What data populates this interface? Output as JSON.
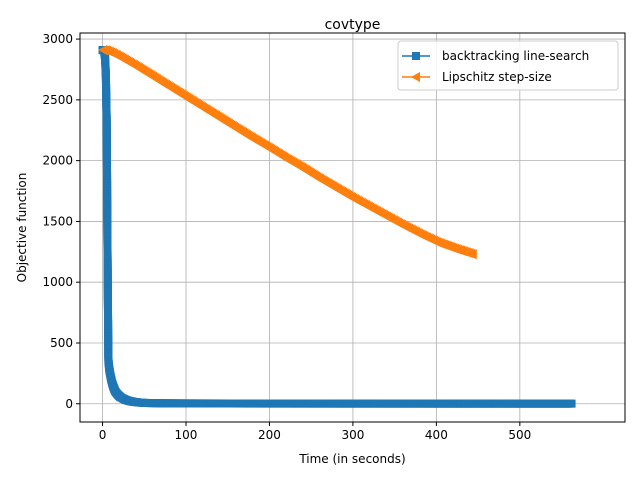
{
  "chart_data": {
    "type": "line",
    "title": "covtype",
    "xlabel": "Time (in seconds)",
    "ylabel": "Objective function",
    "xlim": [
      -27,
      626
    ],
    "ylim": [
      -150,
      3050
    ],
    "xticks": [
      0,
      100,
      200,
      300,
      400,
      500
    ],
    "yticks": [
      0,
      500,
      1000,
      1500,
      2000,
      2500,
      3000
    ],
    "xtick_labels": [
      "0",
      "100",
      "200",
      "300",
      "400",
      "500"
    ],
    "ytick_labels": [
      "0",
      "500",
      "1000",
      "1500",
      "2000",
      "2500",
      "3000"
    ],
    "grid": true,
    "legend_position": "top-right",
    "series": [
      {
        "name": "backtracking line-search",
        "color": "#1f77b4",
        "marker": "square",
        "x": [
          0,
          2,
          3,
          4,
          5,
          6,
          7,
          8,
          9,
          10,
          11,
          12,
          13,
          14,
          15,
          17,
          19,
          21,
          24,
          27,
          30,
          34,
          38,
          43,
          48,
          55,
          62,
          70,
          80,
          90,
          100,
          120,
          140,
          160,
          180,
          200,
          230,
          260,
          290,
          320,
          350,
          380,
          410,
          440,
          470,
          500,
          530,
          562
        ],
        "y": [
          2910,
          2905,
          2850,
          2700,
          2310,
          1220,
          360,
          290,
          250,
          215,
          185,
          160,
          140,
          122,
          105,
          85,
          70,
          57,
          45,
          35,
          27,
          20,
          15,
          11,
          8,
          6,
          5,
          4,
          3.5,
          3,
          2.8,
          2.5,
          2.3,
          2.1,
          2,
          1.9,
          1.8,
          1.7,
          1.6,
          1.6,
          1.5,
          1.5,
          1.4,
          1.4,
          1.4,
          1.3,
          1.3,
          1.3
        ]
      },
      {
        "name": "Lipschitz step-size",
        "color": "#ff7f0e",
        "marker": "triangle-left",
        "x": [
          0,
          5,
          10,
          20,
          40,
          60,
          80,
          100,
          120,
          140,
          160,
          180,
          200,
          220,
          240,
          260,
          280,
          300,
          320,
          340,
          360,
          380,
          400,
          420,
          443
        ],
        "y": [
          2910,
          2905,
          2890,
          2855,
          2775,
          2690,
          2605,
          2520,
          2435,
          2350,
          2265,
          2180,
          2100,
          2015,
          1935,
          1850,
          1770,
          1690,
          1615,
          1540,
          1465,
          1395,
          1330,
          1280,
          1230
        ]
      }
    ]
  }
}
